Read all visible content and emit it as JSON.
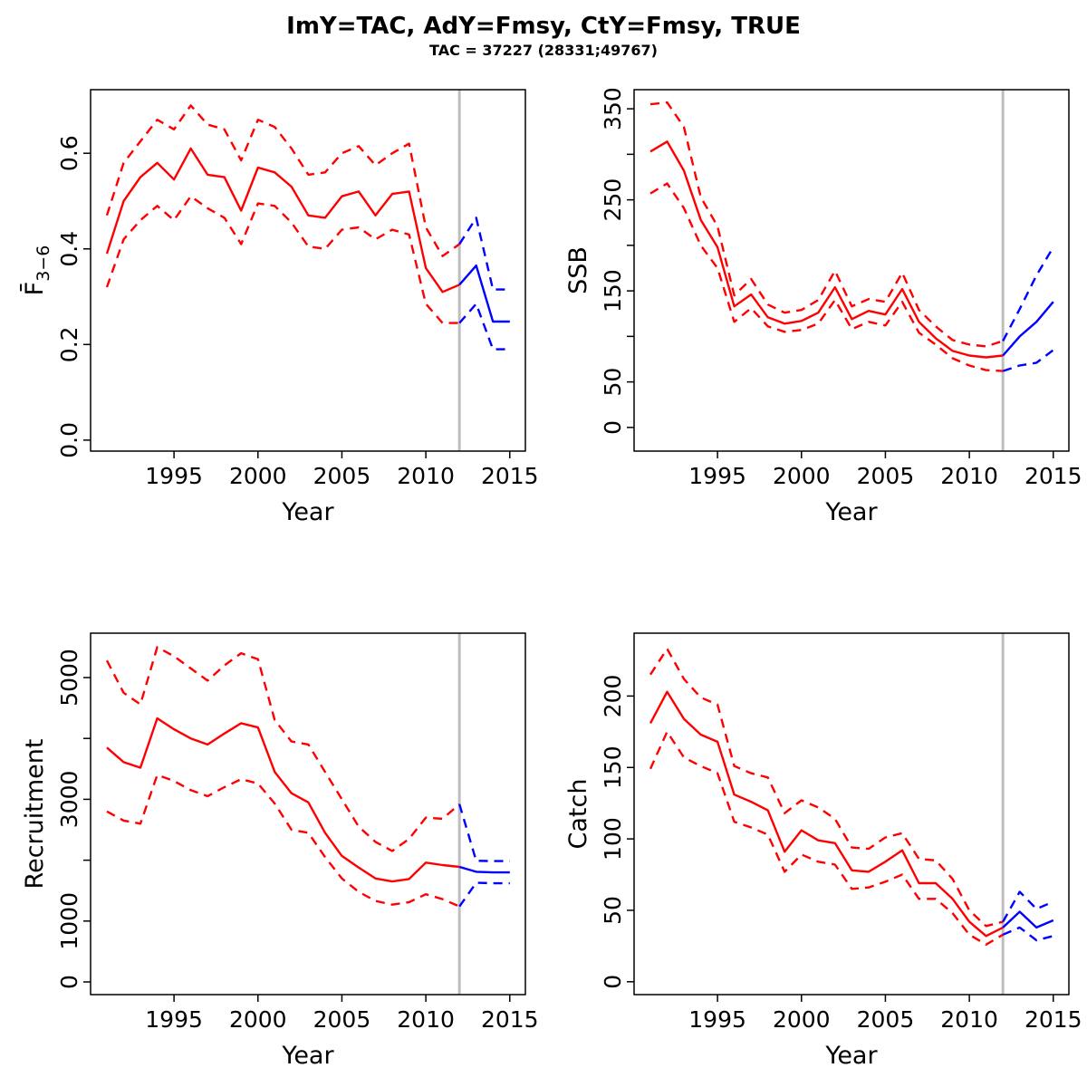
{
  "header": {
    "title": "ImY=TAC, AdY=Fmsy, CtY=Fmsy, TRUE",
    "subtitle": "TAC = 37227 (28331;49767)"
  },
  "colors": {
    "historical": "#FF0000",
    "projection": "#0000FF",
    "divider": "#BEBEBE",
    "axis": "#000000"
  },
  "chart_data": [
    {
      "id": "fbar",
      "type": "line",
      "title": "",
      "xlabel": "Year",
      "ylabel": "F3-6",
      "ylabel_parts": {
        "base": "F̄",
        "subscript": "3−6"
      },
      "xlim": [
        1990.03,
        2015.93
      ],
      "ylim": [
        -0.023,
        0.733
      ],
      "x_ticks": [
        1995,
        2000,
        2005,
        2010,
        2015
      ],
      "x_tick_labels": [
        "1995",
        "2000",
        "2005",
        "2010",
        "2015"
      ],
      "y_ticks": [
        0,
        0.2,
        0.4,
        0.6
      ],
      "y_tick_labels": [
        "0.0",
        "0.2",
        "0.4",
        "0.6"
      ],
      "grid": false,
      "legend": null,
      "divider_x": 2012,
      "x_hist": [
        1991,
        1992,
        1993,
        1994,
        1995,
        1996,
        1997,
        1998,
        1999,
        2000,
        2001,
        2002,
        2003,
        2004,
        2005,
        2006,
        2007,
        2008,
        2009,
        2010,
        2011,
        2012
      ],
      "x_proj": [
        2012,
        2013,
        2014,
        2015
      ],
      "series": [
        {
          "name": "median-historical",
          "period": "hist",
          "style": "solid",
          "color": "#FF0000",
          "y": [
            0.39,
            0.5,
            0.55,
            0.58,
            0.545,
            0.61,
            0.555,
            0.55,
            0.48,
            0.57,
            0.56,
            0.53,
            0.47,
            0.465,
            0.51,
            0.52,
            0.47,
            0.515,
            0.52,
            0.36,
            0.31,
            0.325
          ]
        },
        {
          "name": "ci-upper-historical",
          "period": "hist",
          "style": "dashed",
          "color": "#FF0000",
          "y": [
            0.47,
            0.58,
            0.625,
            0.67,
            0.65,
            0.7,
            0.66,
            0.65,
            0.585,
            0.67,
            0.655,
            0.61,
            0.555,
            0.56,
            0.6,
            0.615,
            0.575,
            0.6,
            0.62,
            0.445,
            0.385,
            0.41
          ]
        },
        {
          "name": "ci-lower-historical",
          "period": "hist",
          "style": "dashed",
          "color": "#FF0000",
          "y": [
            0.32,
            0.42,
            0.46,
            0.49,
            0.46,
            0.51,
            0.485,
            0.465,
            0.41,
            0.495,
            0.49,
            0.455,
            0.405,
            0.4,
            0.44,
            0.445,
            0.42,
            0.44,
            0.43,
            0.285,
            0.245,
            0.245
          ]
        },
        {
          "name": "median-projection",
          "period": "proj",
          "style": "solid",
          "color": "#0000FF",
          "y": [
            0.325,
            0.365,
            0.248,
            0.248
          ]
        },
        {
          "name": "ci-upper-projection",
          "period": "proj",
          "style": "dashed",
          "color": "#0000FF",
          "y": [
            0.41,
            0.465,
            0.315,
            0.315
          ]
        },
        {
          "name": "ci-lower-projection",
          "period": "proj",
          "style": "dashed",
          "color": "#0000FF",
          "y": [
            0.245,
            0.285,
            0.19,
            0.19
          ]
        }
      ]
    },
    {
      "id": "ssb",
      "type": "line",
      "title": "",
      "xlabel": "Year",
      "ylabel": "SSB",
      "xlim": [
        1990.03,
        2015.93
      ],
      "ylim": [
        -26,
        371
      ],
      "x_ticks": [
        1995,
        2000,
        2005,
        2010,
        2015
      ],
      "x_tick_labels": [
        "1995",
        "2000",
        "2005",
        "2010",
        "2015"
      ],
      "y_ticks": [
        0,
        50,
        100,
        150,
        200,
        250,
        300,
        350
      ],
      "y_tick_labels": [
        "0",
        "50",
        "",
        "150",
        "",
        "250",
        "",
        "350"
      ],
      "grid": false,
      "legend": null,
      "divider_x": 2012,
      "x_hist": [
        1991,
        1992,
        1993,
        1994,
        1995,
        1996,
        1997,
        1998,
        1999,
        2000,
        2001,
        2002,
        2003,
        2004,
        2005,
        2006,
        2007,
        2008,
        2009,
        2010,
        2011,
        2012
      ],
      "x_proj": [
        2012,
        2013,
        2014,
        2015
      ],
      "series": [
        {
          "name": "median-historical",
          "period": "hist",
          "style": "solid",
          "color": "#FF0000",
          "y": [
            303,
            314,
            282,
            228,
            198,
            133,
            146,
            121,
            114,
            117,
            126,
            154,
            119,
            128,
            124,
            152,
            116,
            98,
            84,
            79,
            77,
            79
          ]
        },
        {
          "name": "ci-upper-historical",
          "period": "hist",
          "style": "dashed",
          "color": "#FF0000",
          "y": [
            355,
            357,
            330,
            253,
            221,
            145,
            163,
            135,
            126,
            129,
            140,
            172,
            133,
            141,
            138,
            170,
            129,
            111,
            96,
            91,
            89,
            95
          ]
        },
        {
          "name": "ci-lower-historical",
          "period": "hist",
          "style": "dashed",
          "color": "#FF0000",
          "y": [
            257,
            268,
            241,
            200,
            175,
            116,
            131,
            111,
            105,
            107,
            114,
            140,
            108,
            116,
            112,
            138,
            104,
            91,
            76,
            68,
            63,
            62
          ]
        },
        {
          "name": "median-projection",
          "period": "proj",
          "style": "solid",
          "color": "#0000FF",
          "y": [
            79,
            100,
            116,
            138
          ]
        },
        {
          "name": "ci-upper-projection",
          "period": "proj",
          "style": "dashed",
          "color": "#0000FF",
          "y": [
            95,
            130,
            167,
            198
          ]
        },
        {
          "name": "ci-lower-projection",
          "period": "proj",
          "style": "dashed",
          "color": "#0000FF",
          "y": [
            62,
            68,
            71,
            85
          ]
        }
      ]
    },
    {
      "id": "recruitment",
      "type": "line",
      "title": "",
      "xlabel": "Year",
      "ylabel": "Recruitment",
      "xlim": [
        1990.03,
        2015.93
      ],
      "ylim": [
        -208,
        5729
      ],
      "x_ticks": [
        1995,
        2000,
        2005,
        2010,
        2015
      ],
      "x_tick_labels": [
        "1995",
        "2000",
        "2005",
        "2010",
        "2015"
      ],
      "y_ticks": [
        0,
        1000,
        2000,
        3000,
        4000,
        5000
      ],
      "y_tick_labels": [
        "0",
        "1000",
        "",
        "3000",
        "",
        "5000"
      ],
      "grid": false,
      "legend": null,
      "divider_x": 2012,
      "x_hist": [
        1991,
        1992,
        1993,
        1994,
        1995,
        1996,
        1997,
        1998,
        1999,
        2000,
        2001,
        2002,
        2003,
        2004,
        2005,
        2006,
        2007,
        2008,
        2009,
        2010,
        2011,
        2012
      ],
      "x_proj": [
        2012,
        2013,
        2014,
        2015
      ],
      "series": [
        {
          "name": "median-historical",
          "period": "hist",
          "style": "solid",
          "color": "#FF0000",
          "y": [
            3850,
            3610,
            3520,
            4330,
            4150,
            4000,
            3900,
            4080,
            4250,
            4180,
            3450,
            3100,
            2950,
            2450,
            2070,
            1880,
            1700,
            1650,
            1690,
            1960,
            1920,
            1890
          ]
        },
        {
          "name": "ci-upper-historical",
          "period": "hist",
          "style": "dashed",
          "color": "#FF0000",
          "y": [
            5280,
            4750,
            4560,
            5500,
            5350,
            5150,
            4950,
            5200,
            5400,
            5300,
            4300,
            3950,
            3900,
            3450,
            3000,
            2550,
            2300,
            2150,
            2350,
            2700,
            2680,
            2920
          ]
        },
        {
          "name": "ci-lower-historical",
          "period": "hist",
          "style": "dashed",
          "color": "#FF0000",
          "y": [
            2800,
            2650,
            2600,
            3400,
            3300,
            3150,
            3050,
            3200,
            3330,
            3260,
            2930,
            2500,
            2450,
            2050,
            1700,
            1480,
            1330,
            1270,
            1310,
            1440,
            1360,
            1240
          ]
        },
        {
          "name": "median-projection",
          "period": "proj",
          "style": "solid",
          "color": "#0000FF",
          "y": [
            1890,
            1810,
            1800,
            1800
          ]
        },
        {
          "name": "ci-upper-projection",
          "period": "proj",
          "style": "dashed",
          "color": "#0000FF",
          "y": [
            2920,
            1990,
            1985,
            1985
          ]
        },
        {
          "name": "ci-lower-projection",
          "period": "proj",
          "style": "dashed",
          "color": "#0000FF",
          "y": [
            1240,
            1630,
            1620,
            1620
          ]
        }
      ]
    },
    {
      "id": "catch",
      "type": "line",
      "title": "",
      "xlabel": "Year",
      "ylabel": "Catch",
      "xlim": [
        1990.03,
        2015.93
      ],
      "ylim": [
        -9,
        244
      ],
      "x_ticks": [
        1995,
        2000,
        2005,
        2010,
        2015
      ],
      "x_tick_labels": [
        "1995",
        "2000",
        "2005",
        "2010",
        "2015"
      ],
      "y_ticks": [
        0,
        50,
        100,
        150,
        200
      ],
      "y_tick_labels": [
        "0",
        "50",
        "100",
        "150",
        "200"
      ],
      "grid": false,
      "legend": null,
      "divider_x": 2012,
      "x_hist": [
        1991,
        1992,
        1993,
        1994,
        1995,
        1996,
        1997,
        1998,
        1999,
        2000,
        2001,
        2002,
        2003,
        2004,
        2005,
        2006,
        2007,
        2008,
        2009,
        2010,
        2011,
        2012
      ],
      "x_proj": [
        2012,
        2013,
        2014,
        2015
      ],
      "series": [
        {
          "name": "median-historical",
          "period": "hist",
          "style": "solid",
          "color": "#FF0000",
          "y": [
            181,
            203,
            184,
            173,
            168,
            131,
            126,
            120,
            91,
            106,
            99,
            97,
            78,
            77,
            84,
            92,
            69,
            69,
            58,
            42,
            32,
            38
          ]
        },
        {
          "name": "ci-upper-historical",
          "period": "hist",
          "style": "dashed",
          "color": "#FF0000",
          "y": [
            215,
            233,
            212,
            199,
            194,
            151,
            146,
            143,
            118,
            127,
            122,
            114,
            94,
            93,
            101,
            104,
            86,
            85,
            72,
            50,
            39,
            42
          ]
        },
        {
          "name": "ci-lower-historical",
          "period": "hist",
          "style": "dashed",
          "color": "#FF0000",
          "y": [
            149,
            175,
            157,
            151,
            146,
            112,
            108,
            103,
            77,
            89,
            84,
            82,
            65,
            66,
            70,
            75,
            58,
            58,
            48,
            33,
            26,
            33
          ]
        },
        {
          "name": "median-projection",
          "period": "proj",
          "style": "solid",
          "color": "#0000FF",
          "y": [
            38,
            49,
            38,
            43
          ]
        },
        {
          "name": "ci-upper-projection",
          "period": "proj",
          "style": "dashed",
          "color": "#0000FF",
          "y": [
            42,
            63,
            51,
            56
          ]
        },
        {
          "name": "ci-lower-projection",
          "period": "proj",
          "style": "dashed",
          "color": "#0000FF",
          "y": [
            33,
            38,
            29,
            32
          ]
        }
      ]
    }
  ]
}
